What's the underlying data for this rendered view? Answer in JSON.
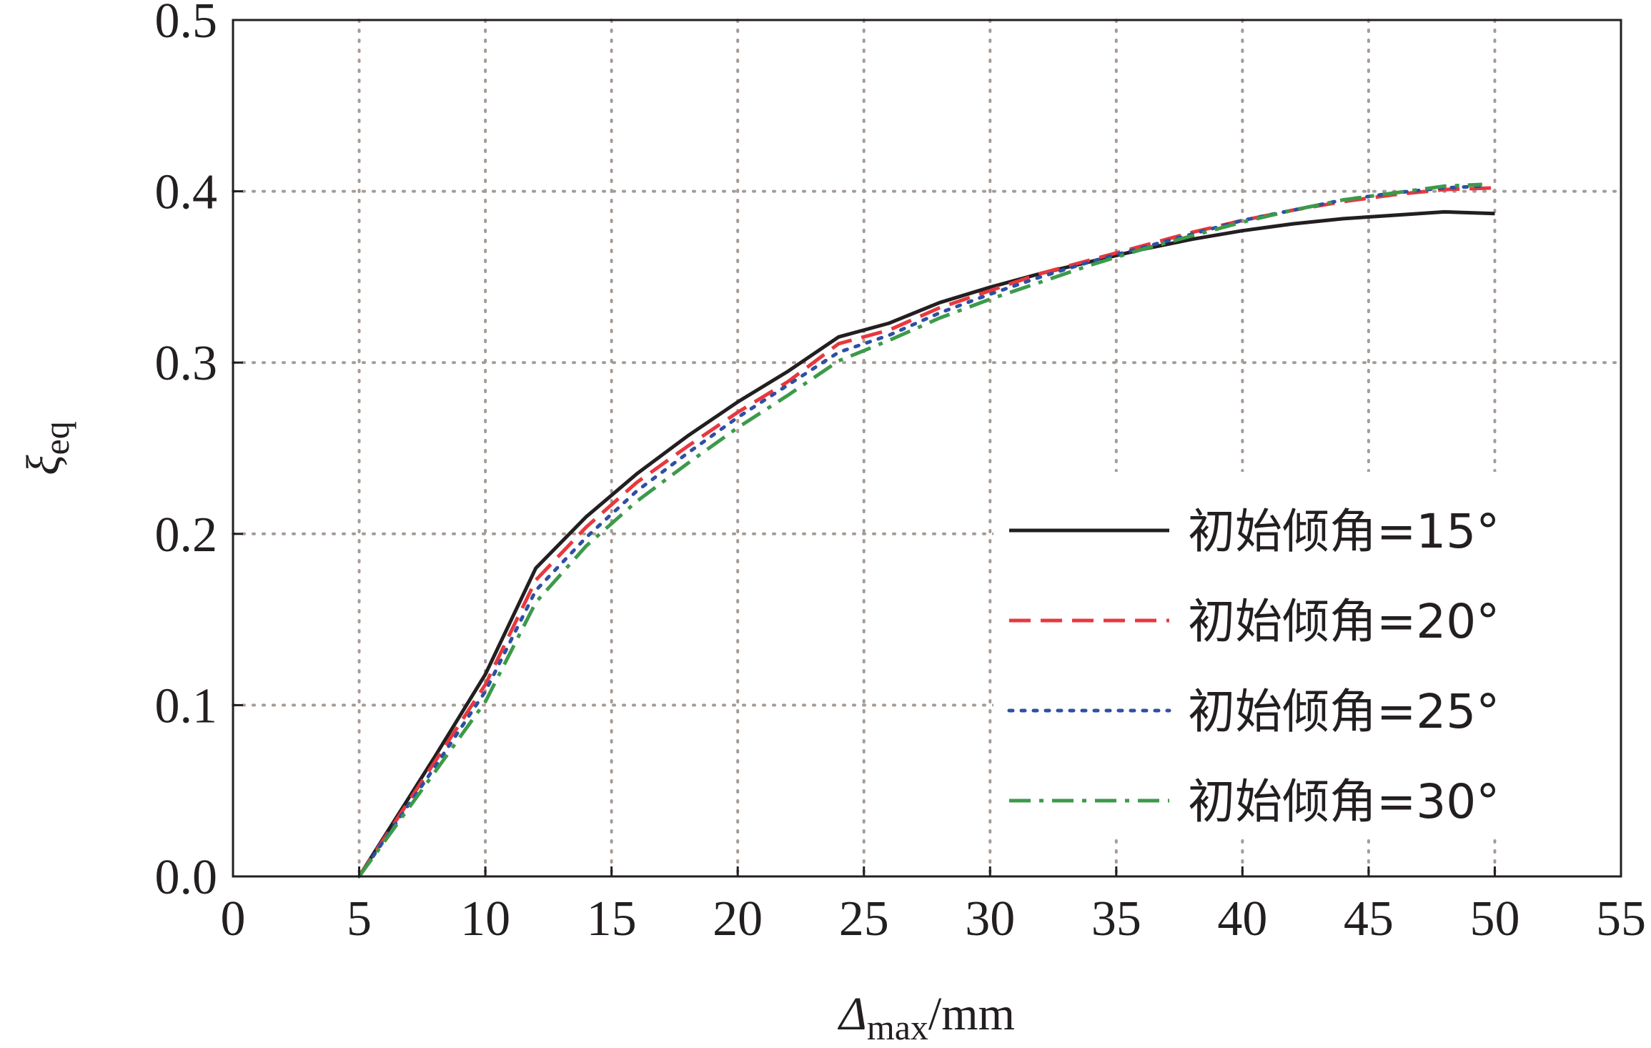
{
  "chart_data": {
    "type": "line",
    "xlabel": {
      "main": "Δ",
      "sub": "max",
      "unit": "/mm"
    },
    "ylabel": {
      "main": "ξ",
      "sub": "eq"
    },
    "xlim": [
      0,
      55
    ],
    "ylim": [
      0,
      0.5
    ],
    "xticks": [
      0,
      5,
      10,
      15,
      20,
      25,
      30,
      35,
      40,
      45,
      50,
      55
    ],
    "yticks": [
      "0.0",
      "0.1",
      "0.2",
      "0.3",
      "0.4",
      "0.5"
    ],
    "grid": true,
    "legend_position": "right",
    "series": [
      {
        "name": "初始倾角=15°",
        "color": "#231f20",
        "dash": "solid",
        "x": [
          5,
          8,
          10,
          12,
          14,
          16,
          18,
          20,
          22,
          24,
          26,
          28,
          30,
          32,
          34,
          36,
          38,
          40,
          42,
          44,
          46,
          48,
          50
        ],
        "y": [
          0.0,
          0.07,
          0.118,
          0.18,
          0.21,
          0.235,
          0.257,
          0.277,
          0.295,
          0.315,
          0.323,
          0.335,
          0.344,
          0.352,
          0.359,
          0.366,
          0.372,
          0.377,
          0.381,
          0.384,
          0.386,
          0.388,
          0.387
        ]
      },
      {
        "name": "初始倾角=20°",
        "color": "#e8383d",
        "dash": "dashed",
        "x": [
          5,
          8,
          10,
          12,
          14,
          16,
          18,
          20,
          22,
          24,
          26,
          28,
          30,
          32,
          34,
          36,
          38,
          40,
          42,
          44,
          46,
          48,
          50
        ],
        "y": [
          0.0,
          0.067,
          0.112,
          0.173,
          0.204,
          0.23,
          0.251,
          0.271,
          0.289,
          0.311,
          0.319,
          0.332,
          0.342,
          0.352,
          0.36,
          0.368,
          0.376,
          0.383,
          0.389,
          0.394,
          0.398,
          0.401,
          0.402
        ]
      },
      {
        "name": "初始倾角=25°",
        "color": "#2e4fa3",
        "dash": "dotted",
        "x": [
          5,
          8,
          10,
          12,
          14,
          16,
          18,
          20,
          22,
          24,
          26,
          28,
          30,
          32,
          34,
          36,
          38,
          40,
          42,
          44,
          46,
          48,
          49.5
        ],
        "y": [
          0.0,
          0.064,
          0.108,
          0.167,
          0.198,
          0.225,
          0.247,
          0.268,
          0.287,
          0.306,
          0.316,
          0.329,
          0.34,
          0.35,
          0.359,
          0.367,
          0.375,
          0.383,
          0.389,
          0.395,
          0.399,
          0.402,
          0.403
        ]
      },
      {
        "name": "初始倾角=30°",
        "color": "#3c9a4a",
        "dash": "dashdot",
        "x": [
          5,
          8,
          10,
          12,
          14,
          16,
          18,
          20,
          22,
          24,
          26,
          28,
          30,
          32,
          34,
          36,
          38,
          40,
          42,
          44,
          46,
          48,
          49.5
        ],
        "y": [
          0.0,
          0.061,
          0.102,
          0.16,
          0.193,
          0.219,
          0.241,
          0.262,
          0.281,
          0.301,
          0.313,
          0.326,
          0.337,
          0.347,
          0.357,
          0.366,
          0.374,
          0.382,
          0.389,
          0.395,
          0.399,
          0.403,
          0.404
        ]
      }
    ]
  }
}
